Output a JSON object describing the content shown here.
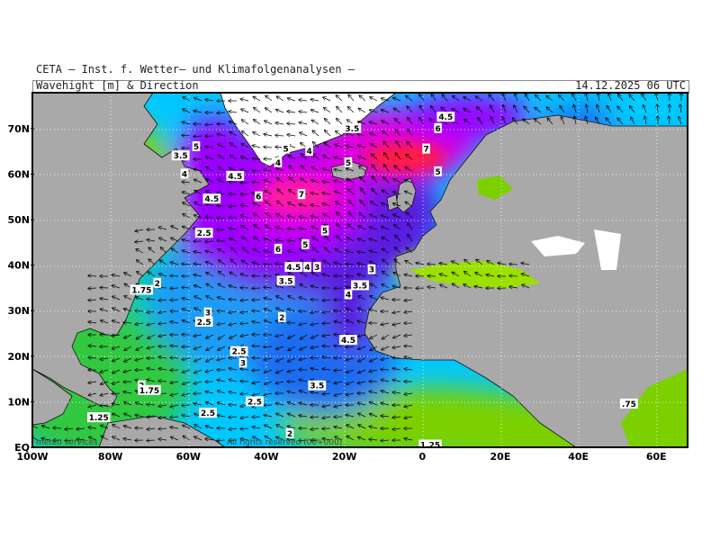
{
  "header": {
    "title": "CETA — Inst. f. Wetter— und Klimafolgenanalysen —",
    "subtitle": "Wavehight [m] & Direction",
    "timestamp": "14.12.2025 06 UTC"
  },
  "axes": {
    "lat_labels": [
      "70N",
      "60N",
      "50N",
      "40N",
      "30N",
      "20N",
      "10N",
      "EQ"
    ],
    "lon_labels": [
      "100W",
      "80W",
      "60W",
      "40W",
      "20W",
      "0",
      "20E",
      "40E",
      "60E"
    ]
  },
  "wave_labels": [
    {
      "value": "4.5",
      "lon": 6,
      "lat": 72.5
    },
    {
      "value": "3.5",
      "lon": -18,
      "lat": 70
    },
    {
      "value": "6",
      "lon": 4,
      "lat": 70
    },
    {
      "value": "5",
      "lon": -58,
      "lat": 66
    },
    {
      "value": "3.5",
      "lon": -62,
      "lat": 64
    },
    {
      "value": "5",
      "lon": -35,
      "lat": 65.5
    },
    {
      "value": "4",
      "lon": -29,
      "lat": 65
    },
    {
      "value": "7",
      "lon": 1,
      "lat": 65.5
    },
    {
      "value": "4",
      "lon": -37,
      "lat": 62.5
    },
    {
      "value": "5",
      "lon": -19,
      "lat": 62.5
    },
    {
      "value": "5",
      "lon": 4,
      "lat": 60.5
    },
    {
      "value": "4",
      "lon": -61,
      "lat": 60
    },
    {
      "value": "4.5",
      "lon": -48,
      "lat": 59.5
    },
    {
      "value": "6",
      "lon": -42,
      "lat": 55
    },
    {
      "value": "7",
      "lon": -31,
      "lat": 55.5
    },
    {
      "value": "4.5",
      "lon": -54,
      "lat": 54.5
    },
    {
      "value": "5",
      "lon": -25,
      "lat": 47.5
    },
    {
      "value": "5",
      "lon": -30,
      "lat": 44.5
    },
    {
      "value": "6",
      "lon": -37,
      "lat": 43.5
    },
    {
      "value": "2.5",
      "lon": -56,
      "lat": 47
    },
    {
      "value": "4.5",
      "lon": -33,
      "lat": 39.5
    },
    {
      "value": "4",
      "lon": -29.5,
      "lat": 39.5
    },
    {
      "value": "3",
      "lon": -27,
      "lat": 39.5
    },
    {
      "value": "3",
      "lon": -13,
      "lat": 39
    },
    {
      "value": "3.5",
      "lon": -35,
      "lat": 36.5
    },
    {
      "value": "3.5",
      "lon": -16,
      "lat": 35.5
    },
    {
      "value": "4",
      "lon": -19,
      "lat": 33.5
    },
    {
      "value": "1.75",
      "lon": -72,
      "lat": 34.5
    },
    {
      "value": "2",
      "lon": -68,
      "lat": 36
    },
    {
      "value": "3",
      "lon": -55,
      "lat": 29.5
    },
    {
      "value": "2.5",
      "lon": -56,
      "lat": 27.5
    },
    {
      "value": "2",
      "lon": -36,
      "lat": 28.5
    },
    {
      "value": "4.5",
      "lon": -19,
      "lat": 23.5
    },
    {
      "value": "2.5",
      "lon": -47,
      "lat": 21
    },
    {
      "value": "3",
      "lon": -46,
      "lat": 18.5
    },
    {
      "value": "3.5",
      "lon": -27,
      "lat": 13.5
    },
    {
      "value": "2",
      "lon": -72,
      "lat": 13.5
    },
    {
      "value": "1.75",
      "lon": -70,
      "lat": 12.5
    },
    {
      "value": "2.5",
      "lon": -43,
      "lat": 10
    },
    {
      "value": "2.5",
      "lon": -55,
      "lat": 7.5
    },
    {
      "value": "1.25",
      "lon": -83,
      "lat": 6.5
    },
    {
      "value": "2",
      "lon": -34,
      "lat": 3
    },
    {
      "value": "1.25",
      "lon": 2,
      "lat": 0.5
    },
    {
      "value": ".75",
      "lon": 53,
      "lat": 9.5
    }
  ],
  "footer": {
    "left": "meteo services",
    "right": "All rights reserved (06+000)"
  },
  "colors": {
    "land": "#a9a9a9",
    "scale": [
      "#228b22",
      "#7cd000",
      "#d8ff00",
      "#00ccff",
      "#1e6cf0",
      "#5a1ee0",
      "#9b00ff",
      "#e000e0",
      "#ff1fa0",
      "#ff1f3f"
    ]
  }
}
